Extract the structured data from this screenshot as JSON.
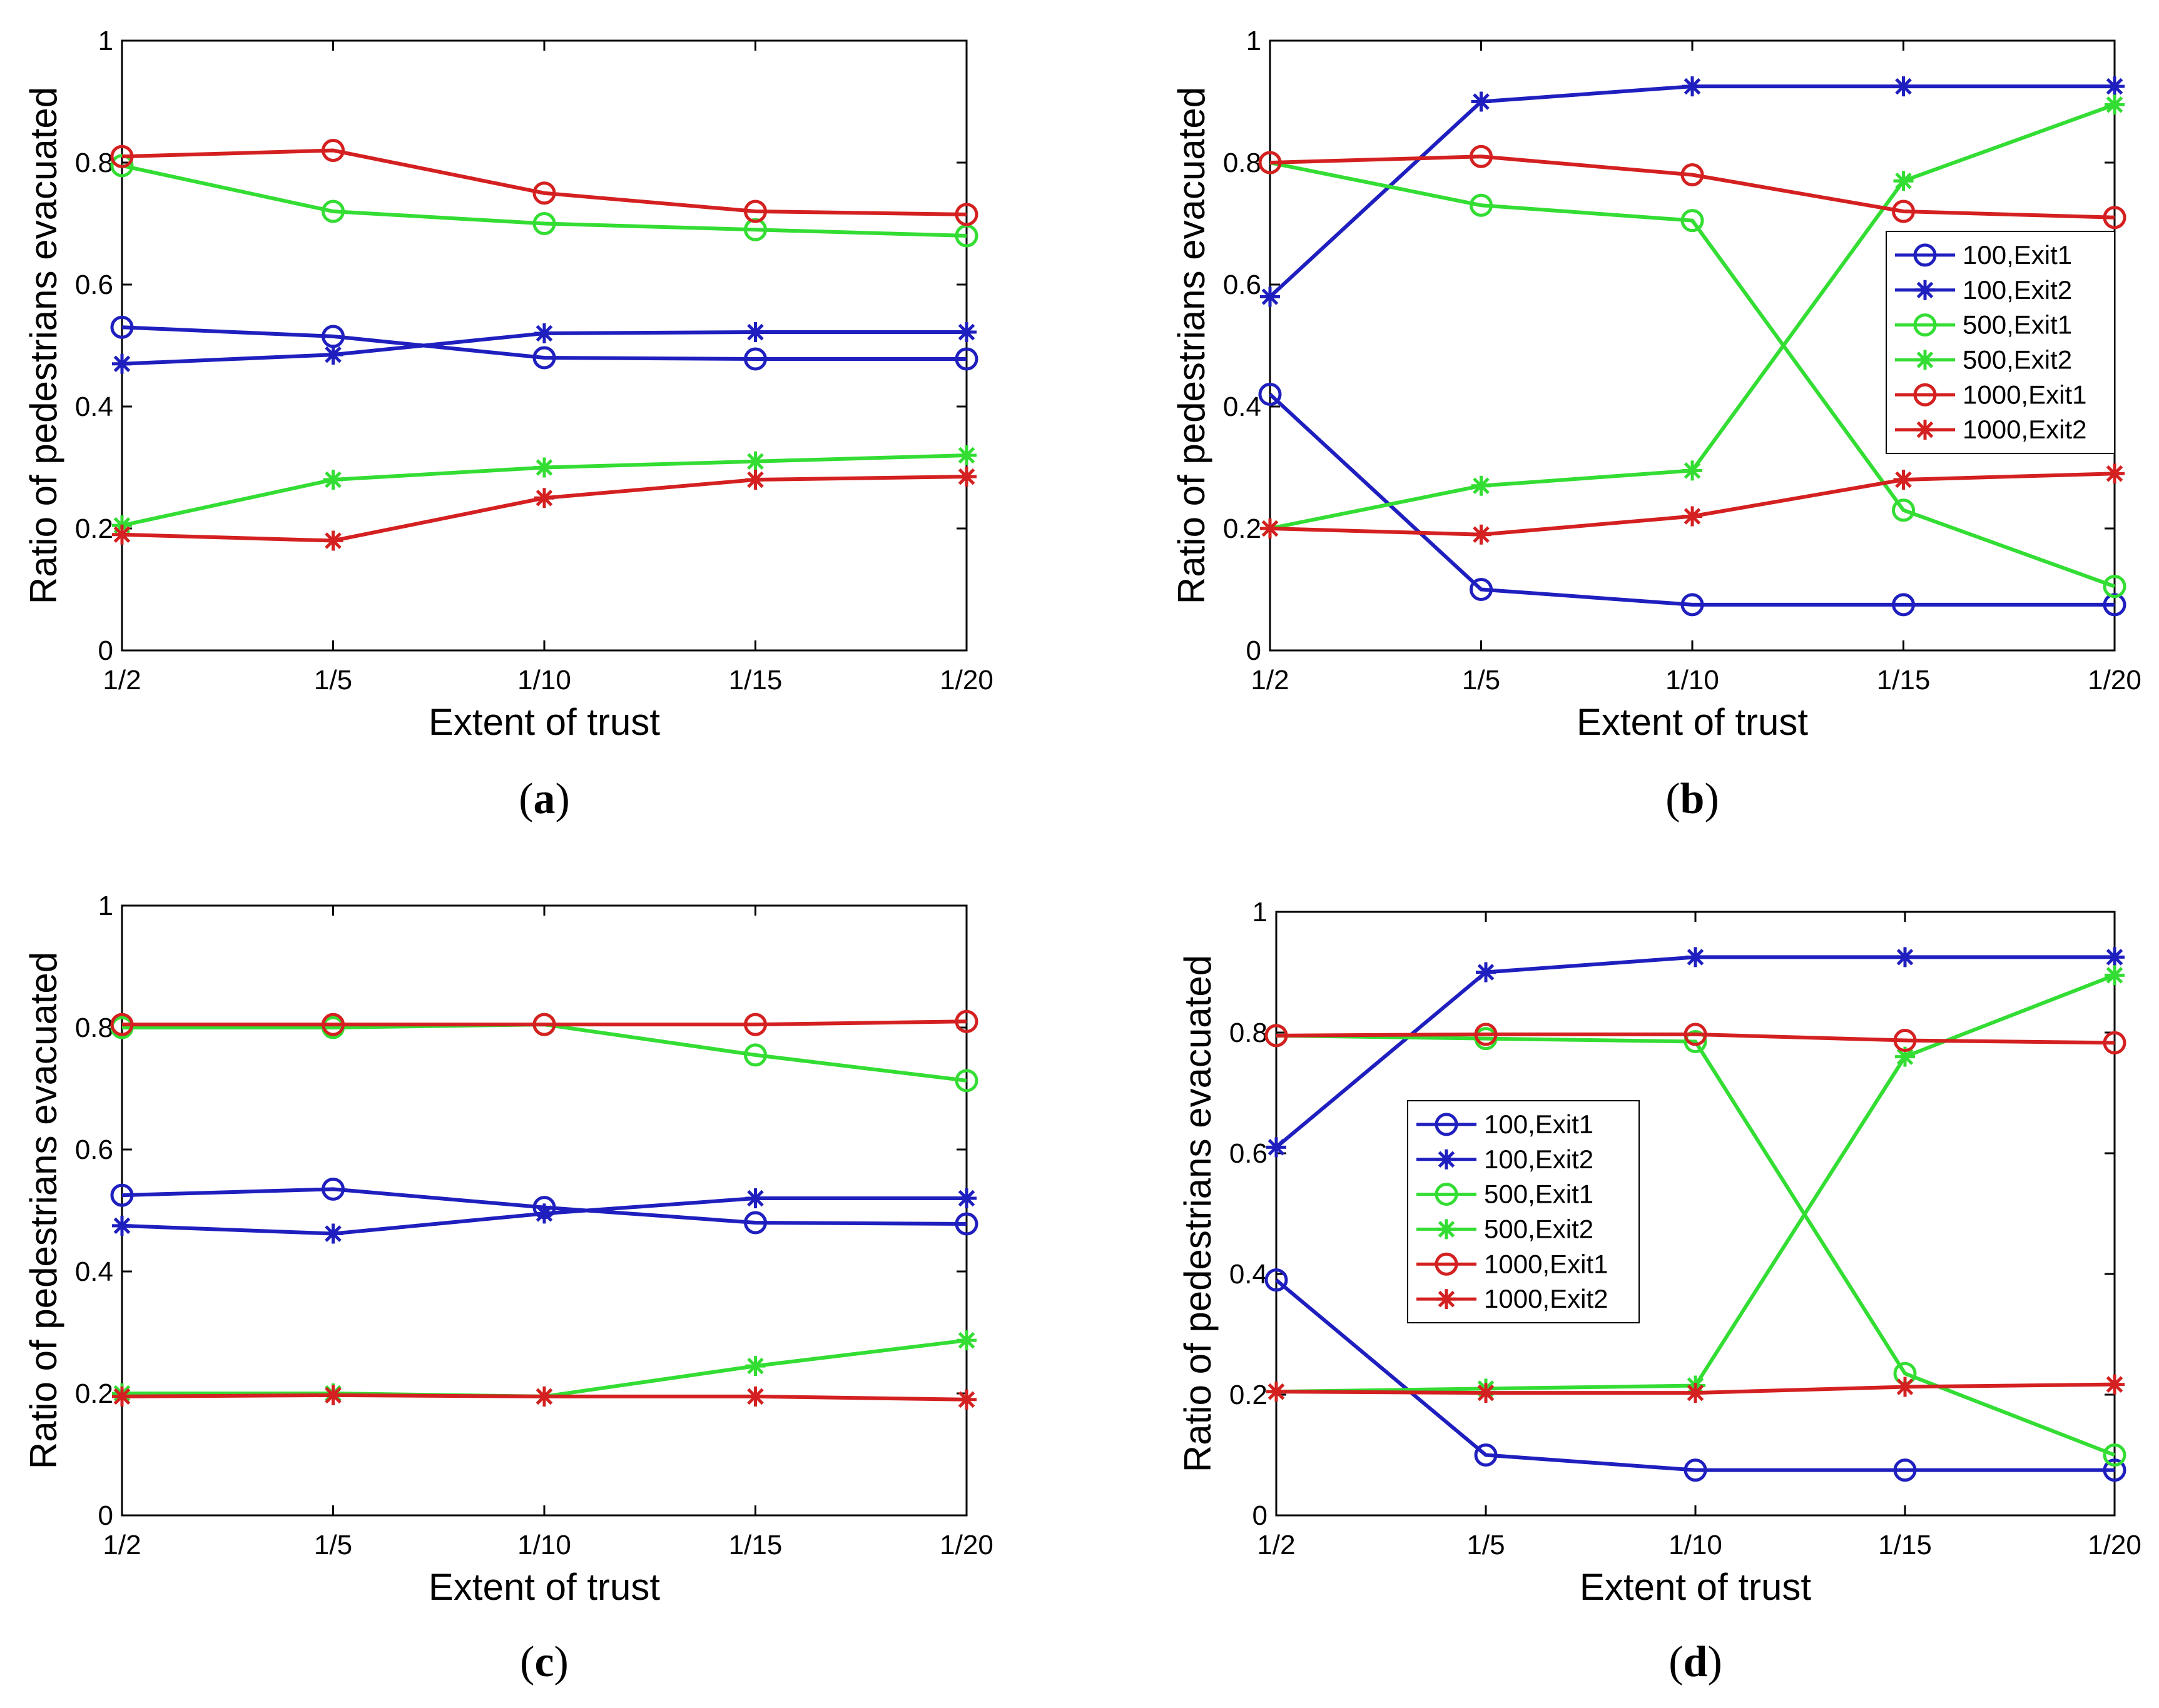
{
  "chart_data": [
    {
      "panel": "a",
      "type": "line",
      "caption_label": "a",
      "xlabel": "Extent of trust",
      "ylabel": "Ratio of pedestrians evacuated",
      "categories": [
        "1/2",
        "1/5",
        "1/10",
        "1/15",
        "1/20"
      ],
      "ylim": [
        0,
        1
      ],
      "yticks": [
        "0",
        "0.2",
        "0.4",
        "0.6",
        "0.8",
        "1"
      ],
      "legend": null,
      "series": [
        {
          "name": "100,Exit1",
          "color": "#1f1fbf",
          "marker": "circle",
          "values": [
            0.53,
            0.515,
            0.48,
            0.478,
            0.478
          ]
        },
        {
          "name": "100,Exit2",
          "color": "#1f1fbf",
          "marker": "star",
          "values": [
            0.47,
            0.485,
            0.52,
            0.522,
            0.522
          ]
        },
        {
          "name": "500,Exit1",
          "color": "#33dd33",
          "marker": "circle",
          "values": [
            0.795,
            0.72,
            0.7,
            0.69,
            0.68
          ]
        },
        {
          "name": "500,Exit2",
          "color": "#33dd33",
          "marker": "star",
          "values": [
            0.205,
            0.28,
            0.3,
            0.31,
            0.32
          ]
        },
        {
          "name": "1000,Exit1",
          "color": "#d42020",
          "marker": "circle",
          "values": [
            0.81,
            0.82,
            0.75,
            0.72,
            0.715
          ]
        },
        {
          "name": "1000,Exit2",
          "color": "#d42020",
          "marker": "star",
          "values": [
            0.19,
            0.18,
            0.25,
            0.28,
            0.285
          ]
        }
      ]
    },
    {
      "panel": "b",
      "type": "line",
      "caption_label": "b",
      "xlabel": "Extent of trust",
      "ylabel": "Ratio of pedestrians evacuated",
      "categories": [
        "1/2",
        "1/5",
        "1/10",
        "1/15",
        "1/20"
      ],
      "ylim": [
        0,
        1
      ],
      "yticks": [
        "0",
        "0.2",
        "0.4",
        "0.6",
        "0.8",
        "1"
      ],
      "legend": "right",
      "series": [
        {
          "name": "100,Exit1",
          "color": "#1f1fbf",
          "marker": "circle",
          "values": [
            0.42,
            0.1,
            0.075,
            0.075,
            0.075
          ]
        },
        {
          "name": "100,Exit2",
          "color": "#1f1fbf",
          "marker": "star",
          "values": [
            0.58,
            0.9,
            0.925,
            0.925,
            0.925
          ]
        },
        {
          "name": "500,Exit1",
          "color": "#33dd33",
          "marker": "circle",
          "values": [
            0.8,
            0.73,
            0.705,
            0.23,
            0.105
          ]
        },
        {
          "name": "500,Exit2",
          "color": "#33dd33",
          "marker": "star",
          "values": [
            0.2,
            0.27,
            0.295,
            0.77,
            0.895
          ]
        },
        {
          "name": "1000,Exit1",
          "color": "#d42020",
          "marker": "circle",
          "values": [
            0.8,
            0.81,
            0.78,
            0.72,
            0.71
          ]
        },
        {
          "name": "1000,Exit2",
          "color": "#d42020",
          "marker": "star",
          "values": [
            0.2,
            0.19,
            0.22,
            0.28,
            0.29
          ]
        }
      ]
    },
    {
      "panel": "c",
      "type": "line",
      "caption_label": "c",
      "xlabel": "Extent of trust",
      "ylabel": "Ratio of pedestrians evacuated",
      "categories": [
        "1/2",
        "1/5",
        "1/10",
        "1/15",
        "1/20"
      ],
      "ylim": [
        0,
        1
      ],
      "yticks": [
        "0",
        "0.2",
        "0.4",
        "0.6",
        "0.8",
        "1"
      ],
      "legend": null,
      "series": [
        {
          "name": "100,Exit1",
          "color": "#1f1fbf",
          "marker": "circle",
          "values": [
            0.525,
            0.535,
            0.505,
            0.48,
            0.478
          ]
        },
        {
          "name": "100,Exit2",
          "color": "#1f1fbf",
          "marker": "star",
          "values": [
            0.475,
            0.462,
            0.495,
            0.52,
            0.52
          ]
        },
        {
          "name": "500,Exit1",
          "color": "#33dd33",
          "marker": "circle",
          "values": [
            0.8,
            0.8,
            0.805,
            0.755,
            0.713
          ]
        },
        {
          "name": "500,Exit2",
          "color": "#33dd33",
          "marker": "star",
          "values": [
            0.2,
            0.2,
            0.195,
            0.245,
            0.287
          ]
        },
        {
          "name": "1000,Exit1",
          "color": "#d42020",
          "marker": "circle",
          "values": [
            0.805,
            0.805,
            0.805,
            0.805,
            0.81
          ]
        },
        {
          "name": "1000,Exit2",
          "color": "#d42020",
          "marker": "star",
          "values": [
            0.195,
            0.197,
            0.195,
            0.195,
            0.19
          ]
        }
      ]
    },
    {
      "panel": "d",
      "type": "line",
      "caption_label": "d",
      "xlabel": "Extent of trust",
      "ylabel": "Ratio of pedestrians evacuated",
      "categories": [
        "1/2",
        "1/5",
        "1/10",
        "1/15",
        "1/20"
      ],
      "ylim": [
        0,
        1
      ],
      "yticks": [
        "0",
        "0.2",
        "0.4",
        "0.6",
        "0.8",
        "1"
      ],
      "legend": "center-left",
      "series": [
        {
          "name": "100,Exit1",
          "color": "#1f1fbf",
          "marker": "circle",
          "values": [
            0.39,
            0.1,
            0.075,
            0.075,
            0.075
          ]
        },
        {
          "name": "100,Exit2",
          "color": "#1f1fbf",
          "marker": "star",
          "values": [
            0.61,
            0.9,
            0.925,
            0.925,
            0.925
          ]
        },
        {
          "name": "500,Exit1",
          "color": "#33dd33",
          "marker": "circle",
          "values": [
            0.795,
            0.79,
            0.785,
            0.235,
            0.1
          ]
        },
        {
          "name": "500,Exit2",
          "color": "#33dd33",
          "marker": "star",
          "values": [
            0.205,
            0.21,
            0.215,
            0.76,
            0.895
          ]
        },
        {
          "name": "1000,Exit1",
          "color": "#d42020",
          "marker": "circle",
          "values": [
            0.795,
            0.797,
            0.797,
            0.787,
            0.783
          ]
        },
        {
          "name": "1000,Exit2",
          "color": "#d42020",
          "marker": "star",
          "values": [
            0.205,
            0.203,
            0.203,
            0.213,
            0.217
          ]
        }
      ]
    }
  ]
}
